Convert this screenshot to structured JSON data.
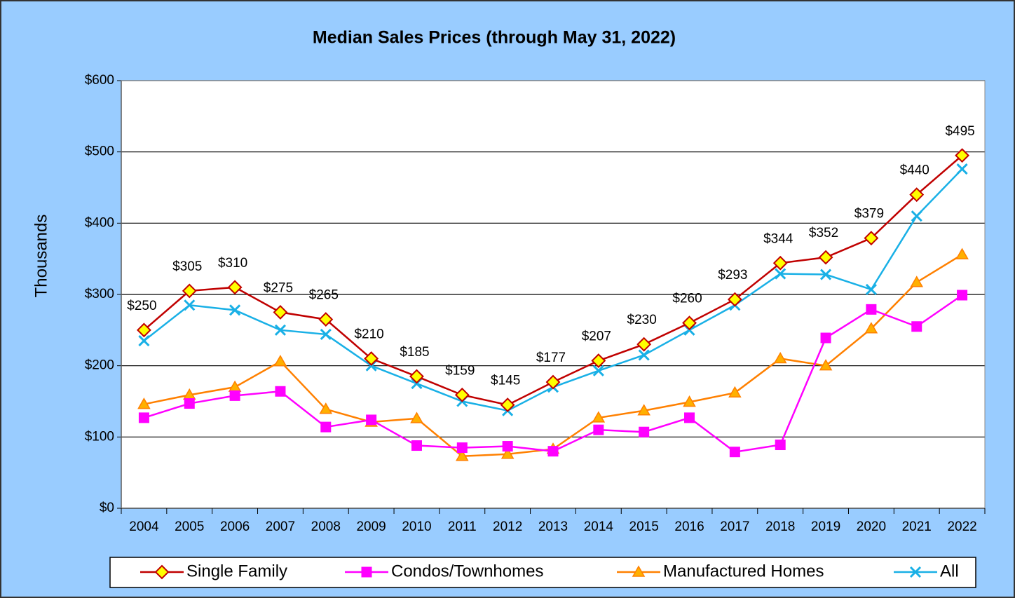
{
  "chart_data": {
    "type": "line",
    "title": "Median Sales Prices (through May 31, 2022)",
    "y_label": "Thousands",
    "categories": [
      "2004",
      "2005",
      "2006",
      "2007",
      "2008",
      "2009",
      "2010",
      "2011",
      "2012",
      "2013",
      "2014",
      "2015",
      "2016",
      "2017",
      "2018",
      "2019",
      "2020",
      "2021",
      "2022"
    ],
    "ylim": [
      0,
      600
    ],
    "yticks": [
      {
        "value": 0,
        "label": "$0"
      },
      {
        "value": 100,
        "label": "$100"
      },
      {
        "value": 200,
        "label": "$200"
      },
      {
        "value": 300,
        "label": "$300"
      },
      {
        "value": 400,
        "label": "$400"
      },
      {
        "value": 500,
        "label": "$500"
      },
      {
        "value": 600,
        "label": "$600"
      }
    ],
    "grid": true,
    "legend": "bottom",
    "series": [
      {
        "name": "Single Family",
        "color": "#c00000",
        "marker": "diamond",
        "marker_fill": "#ffff00",
        "values": [
          250,
          305,
          310,
          275,
          265,
          210,
          185,
          159,
          145,
          177,
          207,
          230,
          260,
          293,
          344,
          352,
          379,
          440,
          495
        ],
        "value_labels": [
          "$250",
          "$305",
          "$310",
          "$275",
          "$265",
          "$210",
          "$185",
          "$159",
          "$145",
          "$177",
          "$207",
          "$230",
          "$260",
          "$293",
          "$344",
          "$352",
          "$379",
          "$440",
          "$495"
        ]
      },
      {
        "name": "Condos/Townhomes",
        "color": "#ff00ff",
        "marker": "square",
        "marker_fill": "#ff00ff",
        "values": [
          127,
          147,
          158,
          164,
          114,
          124,
          88,
          85,
          87,
          80,
          110,
          107,
          127,
          79,
          89,
          239,
          279,
          255,
          299
        ]
      },
      {
        "name": "Manufactured Homes",
        "color": "#ff8000",
        "marker": "triangle",
        "marker_fill": "#ffb000",
        "values": [
          146,
          159,
          170,
          206,
          139,
          121,
          126,
          73,
          76,
          83,
          127,
          137,
          149,
          162,
          210,
          200,
          252,
          317,
          356
        ]
      },
      {
        "name": "All",
        "color": "#19b0e6",
        "marker": "x",
        "marker_fill": "#19b0e6",
        "values": [
          235,
          285,
          278,
          250,
          244,
          200,
          175,
          150,
          137,
          170,
          193,
          215,
          250,
          285,
          329,
          328,
          307,
          410,
          476
        ]
      }
    ]
  }
}
